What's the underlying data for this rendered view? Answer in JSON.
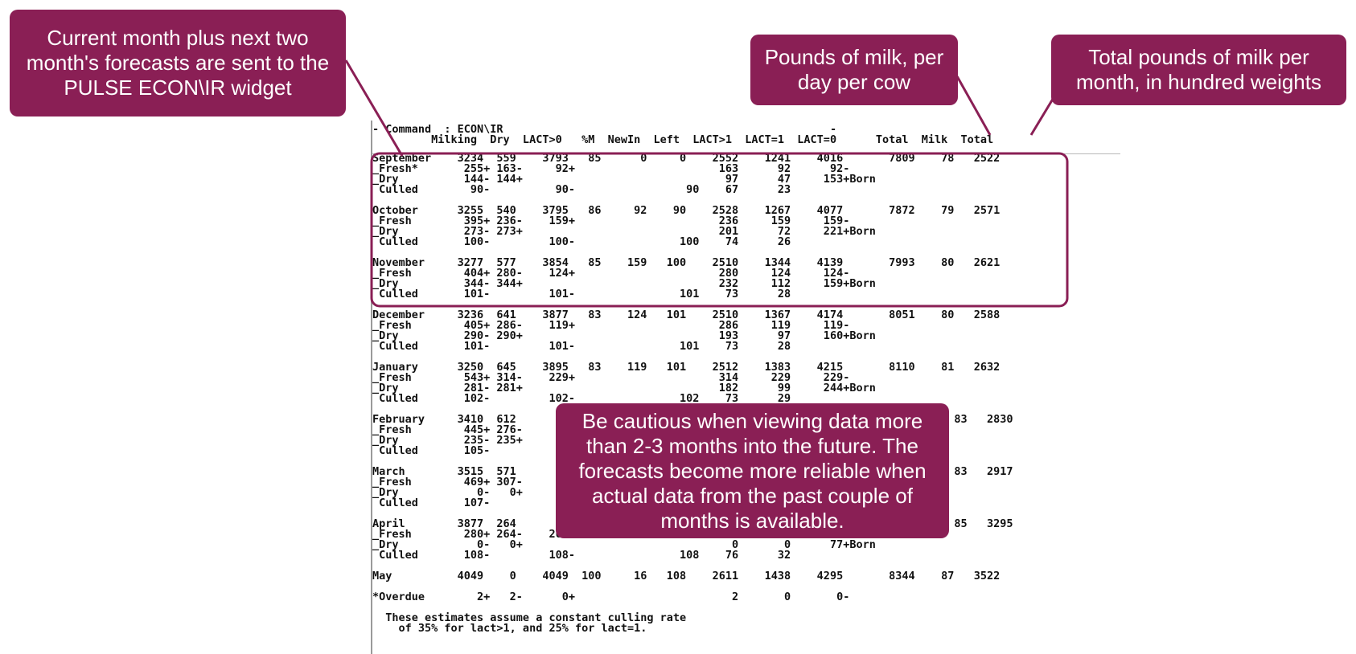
{
  "terminal": {
    "command_line": "- Command  : ECON\\IR                                                  -",
    "header_line": "         Milking  Dry  LACT>0   %M  NewIn  Left  LACT>1  LACT=1  LACT=0      Total  Milk  Total",
    "lines": [
      "September    3234  559    3793   85      0     0    2552    1241    4016       7809    78   2522",
      "_Fresh*       255+ 163-     92+                      163      92      92-",
      "_Dry          144- 144+                               97      47     153+Born",
      " Culled        90-          90-                 90    67      23",
      "",
      "October      3255  540    3795   86     92    90    2528    1267    4077       7872    79   2571",
      "_Fresh        395+ 236-    159+                      236     159     159-",
      "_Dry          273- 273+                              201      72     221+Born",
      " Culled       100-         100-                100    74      26",
      "",
      "November     3277  577    3854   85    159   100    2510    1344    4139       7993    80   2621",
      "_Fresh        404+ 280-    124+                      280     124     124-",
      "_Dry          344- 344+                              232     112     159+Born",
      " Culled       101-         101-                101    73      28",
      "",
      "December     3236  641    3877   83    124   101    2510    1367    4174       8051    80   2588",
      "_Fresh        405+ 286-    119+                      286     119     119-",
      "_Dry          290- 290+                              193      97     160+Born",
      " Culled       101-         101-                101    73      28",
      "",
      "January      3250  645    3895   83    119   101    2512    1383    4215       8110    81   2632",
      "_Fresh        543+ 314-    229+                      314     229     229-",
      "_Dry          281- 281+                              182      99     244+Born",
      " Culled       102-         102-                102    73      29",
      "",
      "February     3410  612                                                           8252    83   2830",
      "_Fresh        445+ 276-",
      "_Dry          235- 235+",
      " Culled       105-",
      "",
      "March        3515  571                                                           8300    83   2917",
      "_Fresh        469+ 307-",
      "_Dry            0-   0+",
      " Culled       107-",
      "",
      "April        3877  264                                                           8275    85   3295",
      "_Fresh        280+ 264-    264-                      264      16",
      "_Dry            0-   0+                                0       0      77+Born",
      " Culled       108-         108-                108    76      32",
      "",
      "May          4049    0    4049  100     16   108    2611    1438    4295       8344    87   3522",
      "",
      "*Overdue        2+   2-      0+                        2       0       0-",
      "",
      "  These estimates assume a constant culling rate",
      "    of 35% for lact>1, and 25% for lact=1."
    ]
  },
  "callouts": {
    "forecast": [
      "Current month plus next two",
      "month's forecasts are sent to the",
      "PULSE ECON\\IR widget"
    ],
    "milk_per_cow": [
      "Pounds of milk, per",
      "day per cow"
    ],
    "total_milk": [
      "Total pounds of milk per",
      "month, in hundred weights"
    ],
    "caution": [
      "Be cautious when viewing data more",
      "than 2-3 months into the future. The",
      "forecasts become more reliable when",
      "actual data from the past couple of",
      "months is available."
    ]
  },
  "colors": {
    "callout_fill": "#8a1f55",
    "callout_text": "#ffffff",
    "terminal_text": "#111111",
    "highlight_border": "#8a1f55"
  }
}
